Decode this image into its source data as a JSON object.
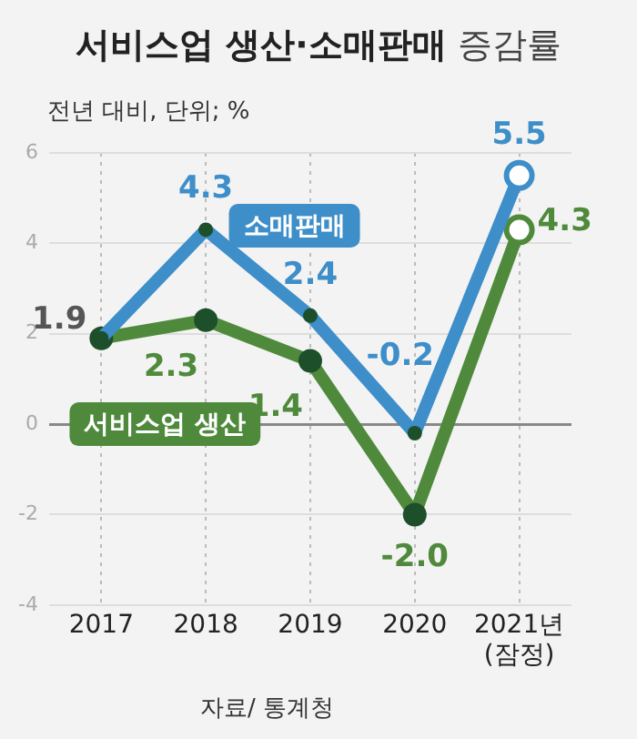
{
  "chart_data": {
    "type": "line",
    "title": "서비스업 생산·소매판매 증감률",
    "ylabel": "전년 대비, 단위; %",
    "categories": [
      "2017",
      "2018",
      "2019",
      "2020",
      "2021년\n(잠정)"
    ],
    "series": [
      {
        "name": "소매판매",
        "color": "#3d8ec9",
        "values": [
          1.9,
          4.3,
          2.4,
          -0.2,
          5.5
        ],
        "value_labels": [
          "1.9",
          "4.3",
          "2.4",
          "-0.2",
          "5.5"
        ]
      },
      {
        "name": "서비스업 생산",
        "color": "#4f8a3c",
        "values": [
          1.9,
          2.3,
          1.4,
          -2.0,
          4.3
        ],
        "value_labels": [
          null,
          "2.3",
          "1.4",
          "-2.0",
          "4.3"
        ]
      }
    ],
    "ylim": [
      -4,
      6
    ],
    "yticks": [
      -4,
      -2,
      0,
      2,
      4,
      6
    ],
    "grid": true,
    "legend": false,
    "marker": "circle",
    "line_style": "solid",
    "annotations": [
      "자료/ 통계청"
    ]
  }
}
